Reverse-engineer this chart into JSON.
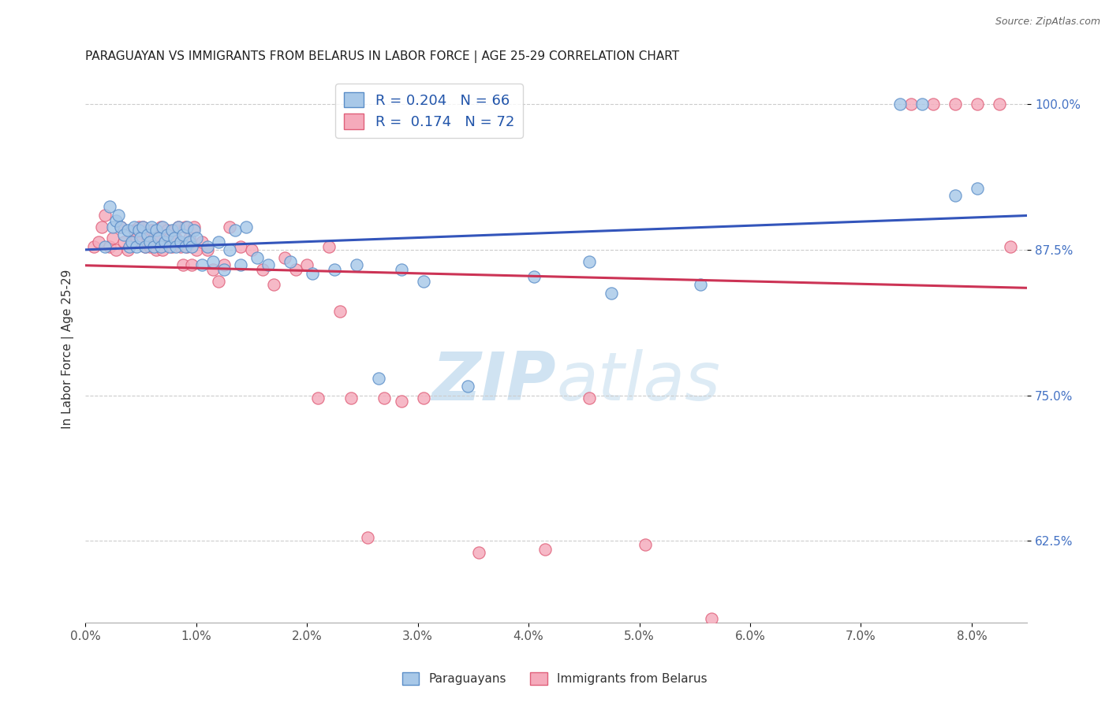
{
  "title": "PARAGUAYAN VS IMMIGRANTS FROM BELARUS IN LABOR FORCE | AGE 25-29 CORRELATION CHART",
  "source": "Source: ZipAtlas.com",
  "ylabel": "In Labor Force | Age 25-29",
  "blue_r": "R = 0.204",
  "blue_n": "N = 66",
  "pink_r": "R =  0.174",
  "pink_n": "N = 72",
  "blue_fill": "#A8C8E8",
  "blue_edge": "#5B8EC8",
  "pink_fill": "#F5AABB",
  "pink_edge": "#E0607A",
  "line_blue": "#3355BB",
  "line_pink": "#CC3355",
  "watermark": "ZIPatlas",
  "xlim": [
    0.0,
    8.5
  ],
  "ylim": [
    0.555,
    1.025
  ],
  "x_ticks": [
    0.0,
    1.0,
    2.0,
    3.0,
    4.0,
    5.0,
    6.0,
    7.0,
    8.0
  ],
  "x_tick_labels": [
    "0.0%",
    "1.0%",
    "2.0%",
    "3.0%",
    "4.0%",
    "5.0%",
    "6.0%",
    "7.0%",
    "8.0%"
  ],
  "y_ticks": [
    0.625,
    0.75,
    0.875,
    1.0
  ],
  "y_tick_labels": [
    "62.5%",
    "75.0%",
    "87.5%",
    "100.0%"
  ],
  "blue_x": [
    0.18,
    0.22,
    0.25,
    0.28,
    0.3,
    0.32,
    0.35,
    0.38,
    0.4,
    0.42,
    0.44,
    0.46,
    0.48,
    0.5,
    0.52,
    0.54,
    0.56,
    0.58,
    0.6,
    0.62,
    0.64,
    0.66,
    0.68,
    0.7,
    0.72,
    0.74,
    0.76,
    0.78,
    0.8,
    0.82,
    0.84,
    0.86,
    0.88,
    0.9,
    0.92,
    0.94,
    0.96,
    0.98,
    1.0,
    1.05,
    1.1,
    1.15,
    1.2,
    1.25,
    1.3,
    1.35,
    1.4,
    1.45,
    1.55,
    1.65,
    1.85,
    2.05,
    2.25,
    2.45,
    2.65,
    2.85,
    3.05,
    3.45,
    4.05,
    4.55,
    4.75,
    5.55,
    7.35,
    7.55,
    7.85,
    8.05
  ],
  "blue_y": [
    0.878,
    0.912,
    0.895,
    0.9,
    0.905,
    0.895,
    0.888,
    0.892,
    0.878,
    0.882,
    0.895,
    0.878,
    0.892,
    0.885,
    0.895,
    0.878,
    0.888,
    0.882,
    0.895,
    0.878,
    0.892,
    0.885,
    0.878,
    0.895,
    0.882,
    0.888,
    0.878,
    0.892,
    0.885,
    0.878,
    0.895,
    0.882,
    0.888,
    0.878,
    0.895,
    0.882,
    0.878,
    0.892,
    0.885,
    0.862,
    0.878,
    0.865,
    0.882,
    0.858,
    0.875,
    0.892,
    0.862,
    0.895,
    0.868,
    0.862,
    0.865,
    0.855,
    0.858,
    0.862,
    0.765,
    0.858,
    0.848,
    0.758,
    0.852,
    0.865,
    0.838,
    0.845,
    1.0,
    1.0,
    0.922,
    0.928
  ],
  "pink_x": [
    0.08,
    0.12,
    0.15,
    0.18,
    0.22,
    0.25,
    0.28,
    0.32,
    0.35,
    0.38,
    0.42,
    0.44,
    0.46,
    0.48,
    0.5,
    0.52,
    0.54,
    0.56,
    0.58,
    0.6,
    0.62,
    0.64,
    0.66,
    0.68,
    0.7,
    0.72,
    0.74,
    0.76,
    0.78,
    0.8,
    0.82,
    0.84,
    0.86,
    0.88,
    0.9,
    0.92,
    0.94,
    0.96,
    0.98,
    1.0,
    1.05,
    1.1,
    1.15,
    1.2,
    1.25,
    1.3,
    1.4,
    1.5,
    1.6,
    1.7,
    1.8,
    1.9,
    2.0,
    2.1,
    2.2,
    2.3,
    2.4,
    2.55,
    2.7,
    2.85,
    3.05,
    3.55,
    4.15,
    4.55,
    5.05,
    5.65,
    7.45,
    7.65,
    7.85,
    8.05,
    8.25,
    8.35
  ],
  "pink_y": [
    0.878,
    0.882,
    0.895,
    0.905,
    0.878,
    0.885,
    0.875,
    0.895,
    0.882,
    0.875,
    0.882,
    0.892,
    0.885,
    0.895,
    0.882,
    0.895,
    0.878,
    0.885,
    0.878,
    0.892,
    0.885,
    0.875,
    0.888,
    0.895,
    0.875,
    0.882,
    0.892,
    0.885,
    0.878,
    0.892,
    0.885,
    0.895,
    0.878,
    0.862,
    0.895,
    0.878,
    0.885,
    0.862,
    0.895,
    0.875,
    0.882,
    0.875,
    0.858,
    0.848,
    0.862,
    0.895,
    0.878,
    0.875,
    0.858,
    0.845,
    0.868,
    0.858,
    0.862,
    0.748,
    0.878,
    0.822,
    0.748,
    0.628,
    0.748,
    0.745,
    0.748,
    0.615,
    0.618,
    0.748,
    0.622,
    0.558,
    1.0,
    1.0,
    1.0,
    1.0,
    1.0,
    0.878
  ]
}
